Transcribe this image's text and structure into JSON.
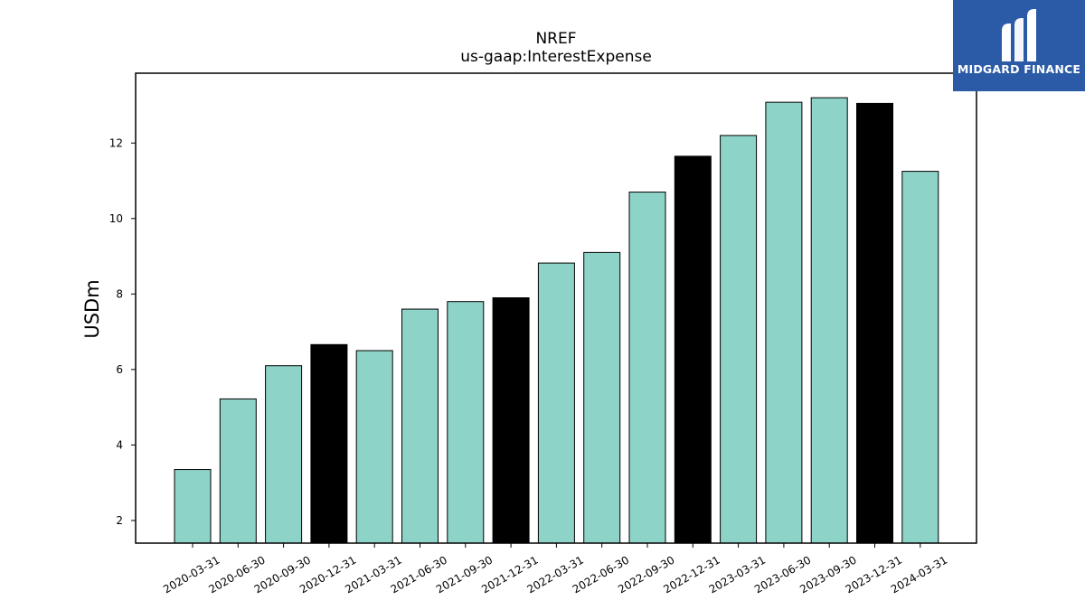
{
  "logo": {
    "text": "MIDGARD FINANCE",
    "colors": {
      "background": "#2b5aa6",
      "foreground": "#ffffff"
    }
  },
  "chart_data": {
    "type": "bar",
    "title": "NREF",
    "subtitle": "us-gaap:InterestExpense",
    "xlabel": "",
    "ylabel": "USDm",
    "categories": [
      "2020-03-31",
      "2020-06-30",
      "2020-09-30",
      "2020-12-31",
      "2021-03-31",
      "2021-06-30",
      "2021-09-30",
      "2021-12-31",
      "2022-03-31",
      "2022-06-30",
      "2022-09-30",
      "2022-12-31",
      "2023-03-31",
      "2023-06-30",
      "2023-09-30",
      "2023-12-31",
      "2024-03-31"
    ],
    "values": [
      3.35,
      5.22,
      6.1,
      6.66,
      6.5,
      7.6,
      7.8,
      7.9,
      8.82,
      9.1,
      10.7,
      11.65,
      12.2,
      13.08,
      13.2,
      13.05,
      11.25
    ],
    "bar_colors": [
      "#8dd3c7",
      "#8dd3c7",
      "#8dd3c7",
      "#000000",
      "#8dd3c7",
      "#8dd3c7",
      "#8dd3c7",
      "#000000",
      "#8dd3c7",
      "#8dd3c7",
      "#8dd3c7",
      "#000000",
      "#8dd3c7",
      "#8dd3c7",
      "#8dd3c7",
      "#000000",
      "#8dd3c7"
    ],
    "ylim": [
      1.4,
      13.85
    ],
    "yticks": [
      2,
      4,
      6,
      8,
      10,
      12
    ],
    "grid": false,
    "legend": "none"
  }
}
